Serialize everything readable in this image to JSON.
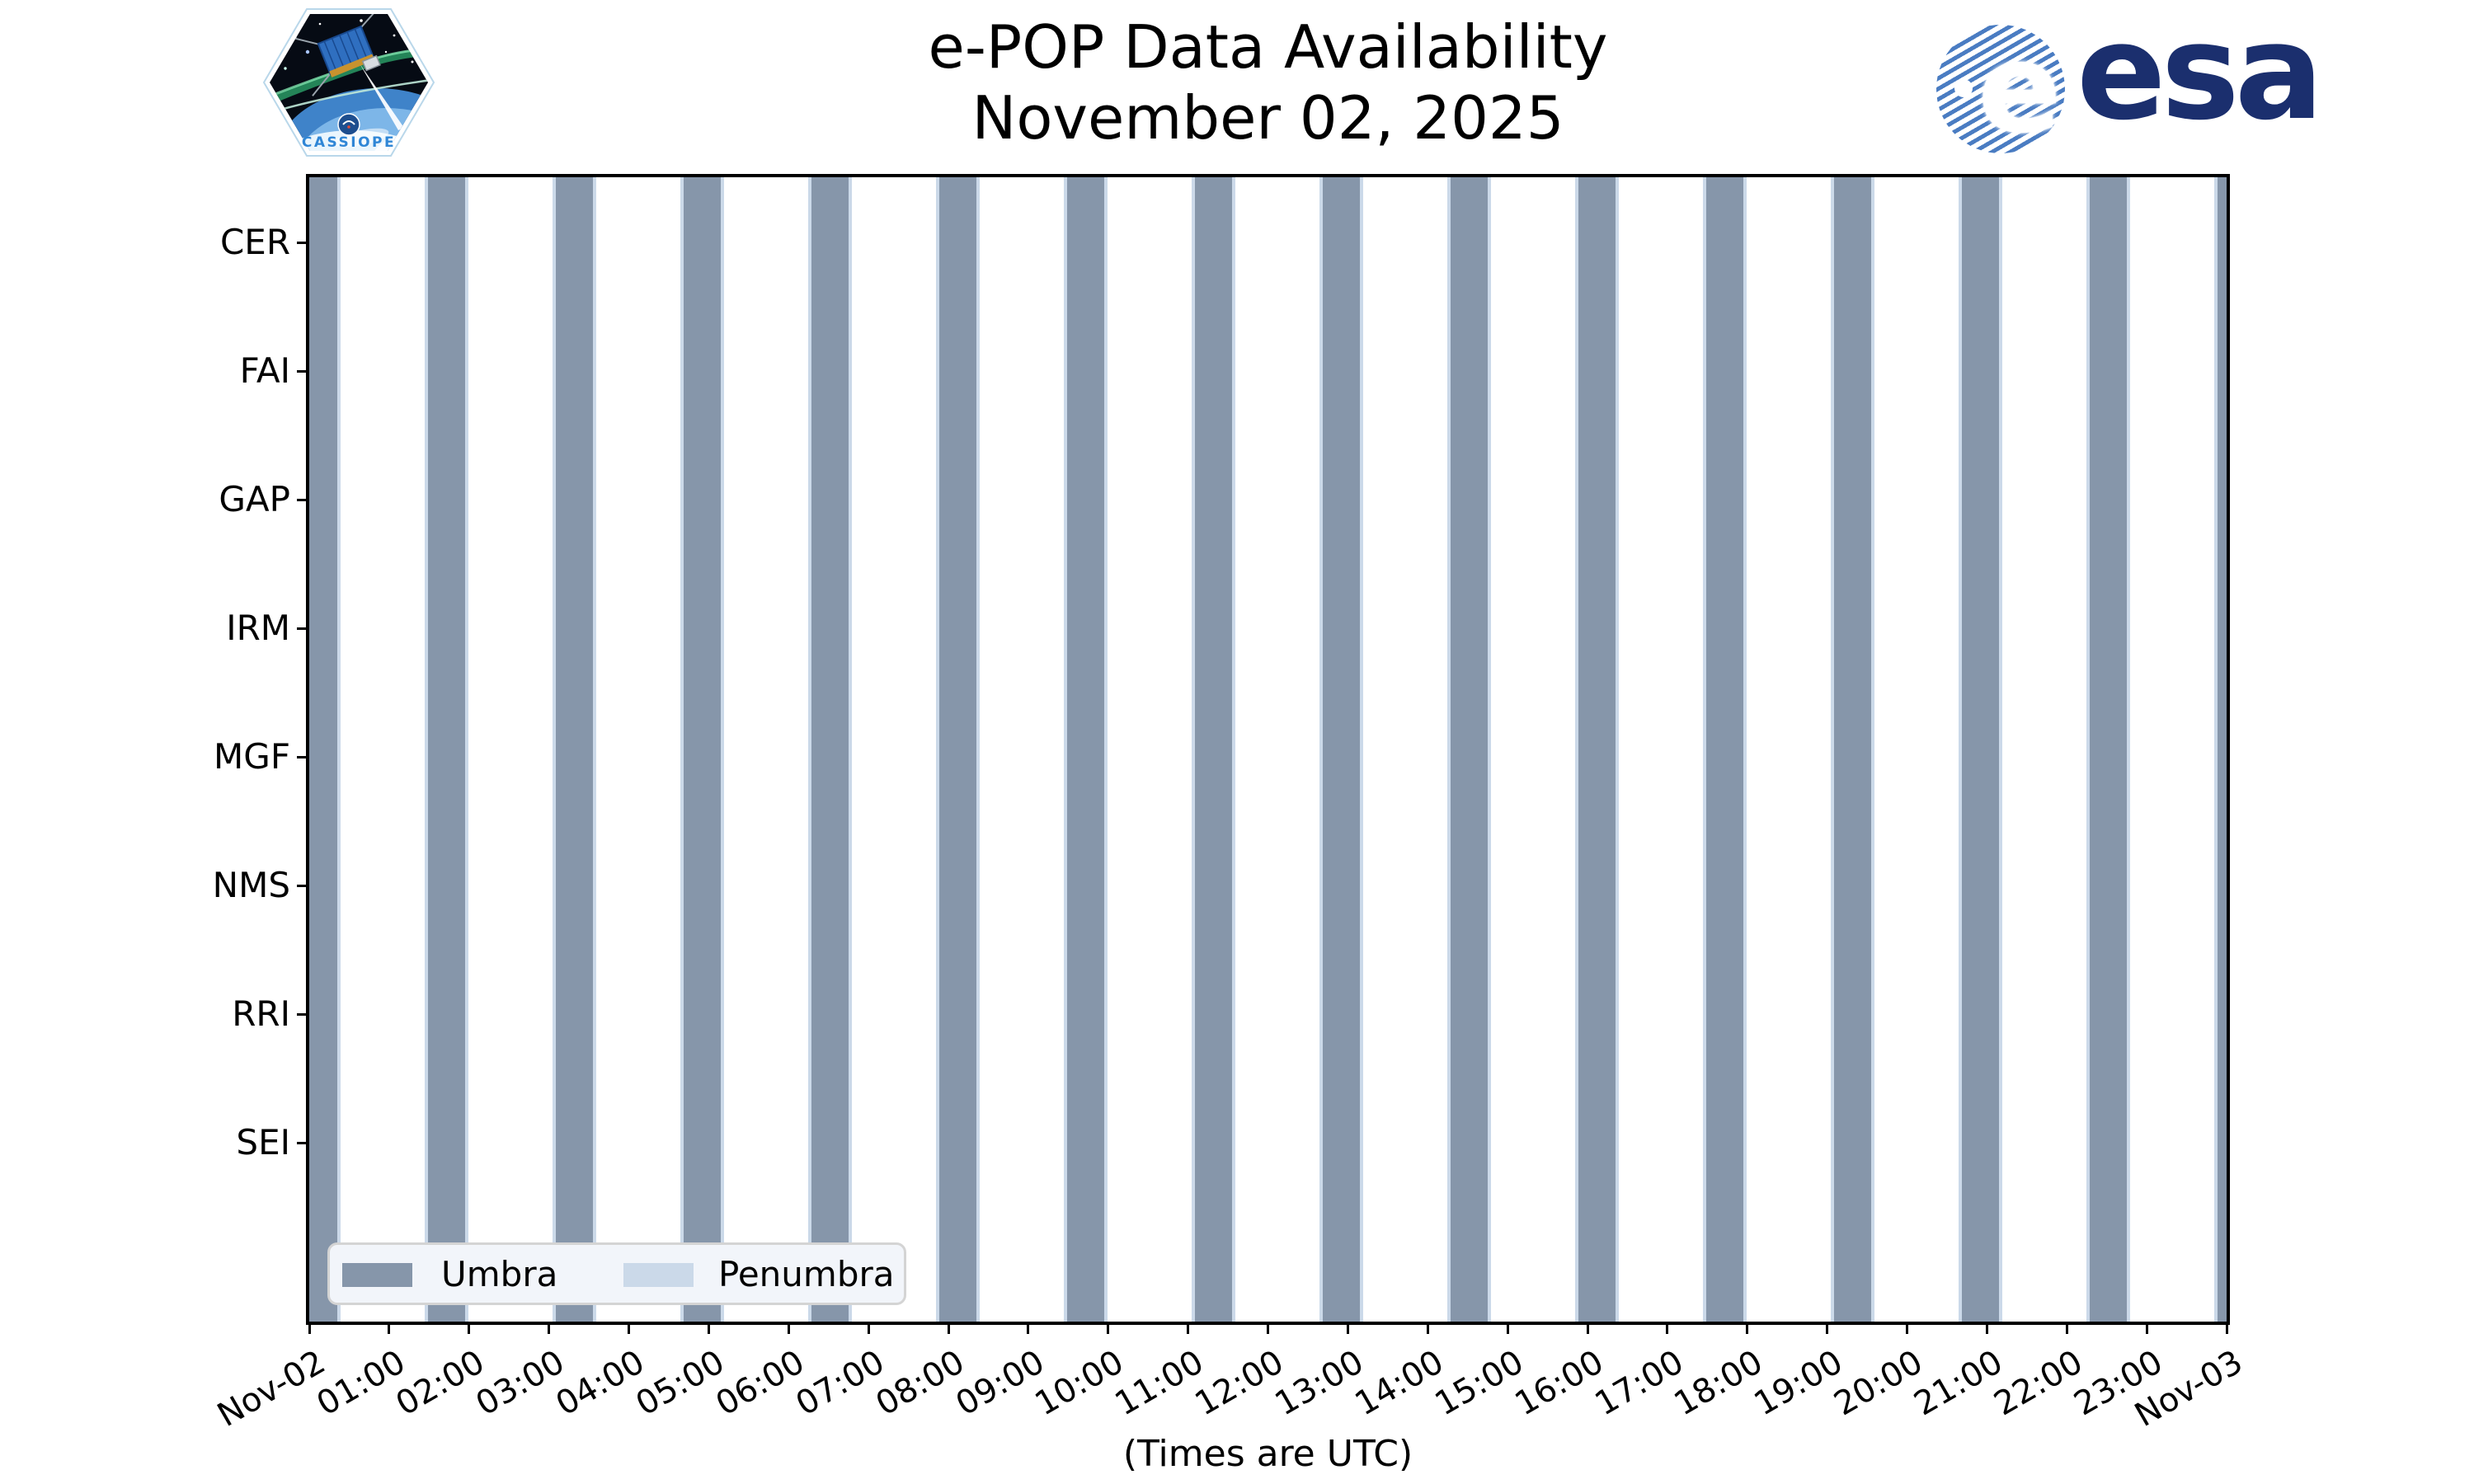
{
  "header": {
    "title_line1": "e-POP Data Availability",
    "title_line2": "November 02, 2025",
    "cassiope_label": "CASSIOPE",
    "esa_label": "esa"
  },
  "chart_data": {
    "type": "bar",
    "title": "e-POP Data Availability",
    "subtitle": "November 02, 2025",
    "xlabel": "(Times are UTC)",
    "x_axis": {
      "range_hours": [
        0,
        24
      ],
      "tick_labels": [
        "Nov-02",
        "01:00",
        "02:00",
        "03:00",
        "04:00",
        "05:00",
        "06:00",
        "07:00",
        "08:00",
        "09:00",
        "10:00",
        "11:00",
        "12:00",
        "13:00",
        "14:00",
        "15:00",
        "16:00",
        "17:00",
        "18:00",
        "19:00",
        "20:00",
        "21:00",
        "22:00",
        "23:00",
        "Nov-03"
      ]
    },
    "categories": [
      "CER",
      "FAI",
      "GAP",
      "IRM",
      "MGF",
      "NMS",
      "RRI",
      "SEI"
    ],
    "umbra_intervals_hours": [
      [
        -0.11,
        0.35
      ],
      [
        1.49,
        1.95
      ],
      [
        3.09,
        3.55
      ],
      [
        4.69,
        5.15
      ],
      [
        6.29,
        6.75
      ],
      [
        7.89,
        8.35
      ],
      [
        9.49,
        9.95
      ],
      [
        11.09,
        11.55
      ],
      [
        12.69,
        13.15
      ],
      [
        14.29,
        14.75
      ],
      [
        15.89,
        16.35
      ],
      [
        17.49,
        17.95
      ],
      [
        19.09,
        19.55
      ],
      [
        20.69,
        21.15
      ],
      [
        22.29,
        22.75
      ],
      [
        23.89,
        24.35
      ]
    ],
    "penumbra_edge_hours": 0.04,
    "legend": [
      {
        "label": "Umbra",
        "color": "#8696aa"
      },
      {
        "label": "Penumbra",
        "color": "#cbd9e9"
      }
    ],
    "grid": false,
    "legend_position": "lower-left",
    "notes": "Shaded vertical bands span all eight instrument rows; umbra bands repeat every ~1.6 h (~96 min orbit), each ~28 min wide with thin penumbra edges."
  }
}
